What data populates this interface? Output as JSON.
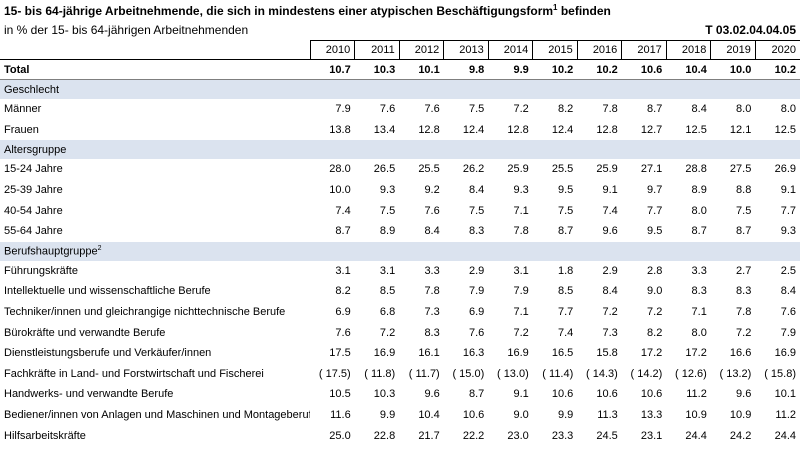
{
  "header": {
    "title_main": "15- bis 64-jährige Arbeitnehmende, die sich in mindestens einer atypischen Beschäftigungsform",
    "title_sup": "1",
    "title_end": " befinden",
    "subtitle": "in % der 15- bis 64-jährigen Arbeitnehmenden",
    "code": "T 03.02.04.04.05"
  },
  "years": [
    "2010",
    "2011",
    "2012",
    "2013",
    "2014",
    "2015",
    "2016",
    "2017",
    "2018",
    "2019",
    "2020"
  ],
  "total": {
    "label": "Total",
    "values": [
      "10.7",
      "10.3",
      "10.1",
      "9.8",
      "9.9",
      "10.2",
      "10.2",
      "10.6",
      "10.4",
      "10.0",
      "10.2"
    ]
  },
  "sections": [
    {
      "label": "Geschlecht",
      "sup": "",
      "rows": [
        {
          "label": "Männer",
          "values": [
            "7.9",
            "7.6",
            "7.6",
            "7.5",
            "7.2",
            "8.2",
            "7.8",
            "8.7",
            "8.4",
            "8.0",
            "8.0"
          ]
        },
        {
          "label": "Frauen",
          "values": [
            "13.8",
            "13.4",
            "12.8",
            "12.4",
            "12.8",
            "12.4",
            "12.8",
            "12.7",
            "12.5",
            "12.1",
            "12.5"
          ]
        }
      ]
    },
    {
      "label": "Altersgruppe",
      "sup": "",
      "rows": [
        {
          "label": "15-24 Jahre",
          "values": [
            "28.0",
            "26.5",
            "25.5",
            "26.2",
            "25.9",
            "25.5",
            "25.9",
            "27.1",
            "28.8",
            "27.5",
            "26.9"
          ]
        },
        {
          "label": "25-39 Jahre",
          "values": [
            "10.0",
            "9.3",
            "9.2",
            "8.4",
            "9.3",
            "9.5",
            "9.1",
            "9.7",
            "8.9",
            "8.8",
            "9.1"
          ]
        },
        {
          "label": "40-54 Jahre",
          "values": [
            "7.4",
            "7.5",
            "7.6",
            "7.5",
            "7.1",
            "7.5",
            "7.4",
            "7.7",
            "8.0",
            "7.5",
            "7.7"
          ]
        },
        {
          "label": "55-64 Jahre",
          "values": [
            "8.7",
            "8.9",
            "8.4",
            "8.3",
            "7.8",
            "8.7",
            "9.6",
            "9.5",
            "8.7",
            "8.7",
            "9.3"
          ]
        }
      ]
    },
    {
      "label": "Berufshauptgruppe",
      "sup": "2",
      "rows": [
        {
          "label": "Führungskräfte",
          "values": [
            "3.1",
            "3.1",
            "3.3",
            "2.9",
            "3.1",
            "1.8",
            "2.9",
            "2.8",
            "3.3",
            "2.7",
            "2.5"
          ]
        },
        {
          "label": "Intellektuelle und wissenschaftliche Berufe",
          "values": [
            "8.2",
            "8.5",
            "7.8",
            "7.9",
            "7.9",
            "8.5",
            "8.4",
            "9.0",
            "8.3",
            "8.3",
            "8.4"
          ]
        },
        {
          "label": "Techniker/innen und gleichrangige nichttechnische Berufe",
          "values": [
            "6.9",
            "6.8",
            "7.3",
            "6.9",
            "7.1",
            "7.7",
            "7.2",
            "7.2",
            "7.1",
            "7.8",
            "7.6"
          ]
        },
        {
          "label": "Bürokräfte und verwandte Berufe",
          "values": [
            "7.6",
            "7.2",
            "8.3",
            "7.6",
            "7.2",
            "7.4",
            "7.3",
            "8.2",
            "8.0",
            "7.2",
            "7.9"
          ]
        },
        {
          "label": "Dienstleistungsberufe und Verkäufer/innen",
          "values": [
            "17.5",
            "16.9",
            "16.1",
            "16.3",
            "16.9",
            "16.5",
            "15.8",
            "17.2",
            "17.2",
            "16.6",
            "16.9"
          ]
        },
        {
          "label": "Fachkräfte in Land- und Forstwirtschaft und Fischerei",
          "values": [
            "( 17.5)",
            "( 11.8)",
            "( 11.7)",
            "( 15.0)",
            "( 13.0)",
            "( 11.4)",
            "( 14.3)",
            "( 14.2)",
            "( 12.6)",
            "( 13.2)",
            "( 15.8)"
          ]
        },
        {
          "label": "Handwerks- und verwandte Berufe",
          "values": [
            "10.5",
            "10.3",
            "9.6",
            "8.7",
            "9.1",
            "10.6",
            "10.6",
            "10.6",
            "11.2",
            "9.6",
            "10.1"
          ]
        },
        {
          "label": "Bediener/innen von Anlagen und Maschinen und Montageberufe",
          "values": [
            "11.6",
            "9.9",
            "10.4",
            "10.6",
            "9.0",
            "9.9",
            "11.3",
            "13.3",
            "10.9",
            "10.9",
            "11.2"
          ]
        },
        {
          "label": "Hilfsarbeitskräfte",
          "values": [
            "25.0",
            "22.8",
            "21.7",
            "22.2",
            "23.0",
            "23.3",
            "24.5",
            "23.1",
            "24.4",
            "24.2",
            "24.4"
          ]
        }
      ]
    }
  ]
}
